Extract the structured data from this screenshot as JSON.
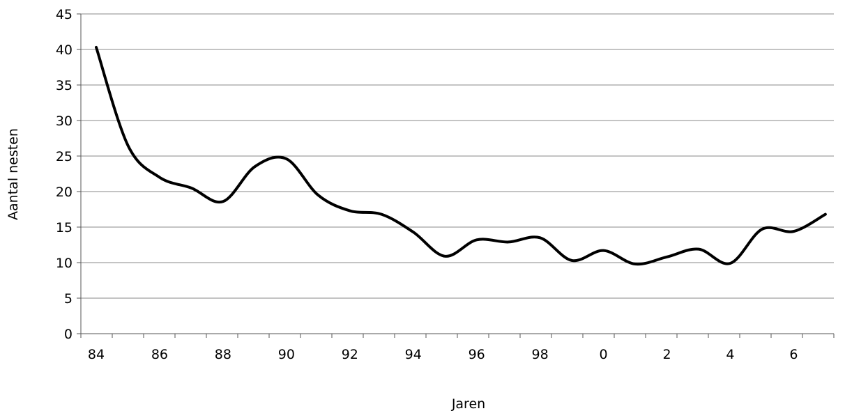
{
  "chart_data": {
    "type": "line",
    "title": "",
    "xlabel": "Jaren",
    "ylabel": "Aantal nesten",
    "ylim": [
      0,
      45
    ],
    "yticks": [
      0,
      5,
      10,
      15,
      20,
      25,
      30,
      35,
      40,
      45
    ],
    "x_tick_labels": [
      "84",
      "86",
      "88",
      "90",
      "92",
      "94",
      "96",
      "98",
      "0",
      "2",
      "4",
      "6"
    ],
    "grid": "horizontal",
    "legend": "none",
    "categories": [
      "84",
      "85",
      "86",
      "87",
      "88",
      "89",
      "90",
      "91",
      "92",
      "93",
      "94",
      "95",
      "96",
      "97",
      "98",
      "99",
      "0",
      "1",
      "2",
      "3",
      "4",
      "5",
      "6",
      "7"
    ],
    "series": [
      {
        "values": [
          40.3,
          26.5,
          22.0,
          20.5,
          18.6,
          23.5,
          24.6,
          19.5,
          17.3,
          16.8,
          14.3,
          10.9,
          13.2,
          12.9,
          13.5,
          10.3,
          11.7,
          9.8,
          10.8,
          11.9,
          9.9,
          14.7,
          14.4,
          16.8
        ],
        "color": "#000000"
      }
    ],
    "colors": {
      "line": "#000000",
      "grid": "#888888",
      "axis": "#555555",
      "background": "#ffffff"
    }
  }
}
